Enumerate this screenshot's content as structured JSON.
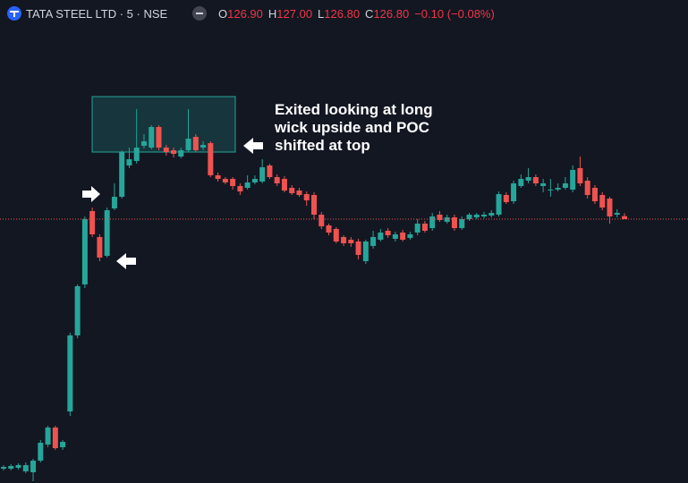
{
  "header": {
    "symbol": "TATA STEEL LTD · 5 · NSE",
    "ohlc": [
      {
        "label": "O",
        "value": "126.90"
      },
      {
        "label": "H",
        "value": "127.00"
      },
      {
        "label": "L",
        "value": "126.80"
      },
      {
        "label": "C",
        "value": "126.80"
      }
    ],
    "change": "−0.10 (−0.08%)"
  },
  "chart_data": {
    "type": "candlestick",
    "annotation": [
      "Exited looking at long",
      "wick upside and POC",
      "shifted at top"
    ],
    "up_color": "#26a69a",
    "down_color": "#ef5350",
    "last_price_line": true,
    "ylim": [
      117.95,
      134.15
    ],
    "open": [
      118.43,
      118.43,
      118.46,
      118.34,
      118.31,
      118.7,
      119.24,
      119.81,
      119.15,
      120.35,
      122.9,
      124.61,
      127.07,
      126.2,
      125.57,
      127.16,
      127.55,
      128.6,
      128.75,
      129.26,
      129.2,
      129.89,
      129.2,
      129.11,
      128.9,
      129.11,
      129.56,
      129.2,
      129.35,
      128.27,
      128.15,
      128.15,
      127.91,
      127.85,
      128.03,
      128.06,
      128.6,
      128.21,
      128.15,
      127.85,
      127.76,
      127.64,
      127.61,
      126.95,
      126.59,
      126.47,
      126.2,
      126.11,
      126.05,
      125.39,
      125.9,
      126.11,
      126.41,
      126.14,
      126.35,
      126.17,
      126.35,
      126.65,
      126.5,
      126.95,
      126.71,
      126.86,
      126.5,
      126.8,
      126.86,
      126.89,
      126.92,
      126.95,
      127.61,
      127.4,
      127.91,
      128.09,
      128.21,
      127.91,
      127.76,
      127.79,
      127.85,
      127.79,
      128.51,
      128.09,
      127.85,
      127.61,
      127.49,
      126.95,
      126.9
    ],
    "high": [
      118.55,
      118.58,
      118.61,
      118.64,
      118.76,
      119.39,
      119.87,
      119.87,
      119.39,
      122.99,
      124.61,
      126.89,
      127.19,
      126.29,
      127.19,
      128.0,
      129.11,
      129.2,
      130.49,
      129.65,
      129.95,
      129.95,
      129.29,
      129.2,
      129.2,
      130.49,
      129.65,
      129.41,
      129.41,
      128.36,
      128.21,
      128.21,
      128.0,
      128.27,
      128.27,
      128.81,
      128.66,
      128.3,
      128.24,
      127.94,
      127.85,
      127.73,
      127.7,
      127.04,
      126.65,
      126.53,
      126.26,
      126.2,
      126.14,
      126.11,
      126.41,
      126.47,
      126.5,
      126.38,
      126.44,
      126.38,
      126.8,
      126.74,
      127.01,
      127.07,
      126.95,
      126.95,
      126.89,
      127.01,
      127.01,
      127.04,
      127.1,
      127.73,
      127.7,
      128.09,
      128.3,
      128.51,
      128.3,
      128.15,
      128.15,
      128.0,
      128.21,
      128.6,
      128.9,
      128.21,
      127.94,
      127.7,
      127.55,
      127.13,
      127.0
    ],
    "low": [
      118.37,
      118.37,
      118.4,
      118.28,
      118.01,
      118.64,
      119.15,
      119.06,
      119.06,
      120.2,
      122.81,
      124.49,
      126.2,
      125.39,
      125.51,
      127.1,
      127.49,
      128.51,
      128.66,
      129.17,
      129.14,
      129.11,
      128.93,
      128.87,
      128.84,
      129.05,
      129.05,
      129.11,
      128.21,
      128.06,
      127.97,
      127.79,
      127.61,
      127.79,
      127.97,
      128.0,
      128.15,
      127.91,
      127.7,
      127.61,
      127.55,
      127.25,
      126.8,
      126.47,
      126.26,
      125.99,
      125.9,
      125.87,
      125.45,
      125.3,
      125.81,
      126.05,
      126.17,
      126.05,
      126.05,
      126.11,
      126.26,
      126.35,
      126.41,
      126.71,
      126.65,
      126.41,
      126.44,
      126.74,
      126.8,
      126.83,
      126.86,
      126.89,
      127.31,
      127.31,
      127.85,
      128.0,
      127.91,
      127.7,
      127.55,
      127.73,
      127.79,
      127.7,
      127.91,
      127.49,
      127.31,
      127.1,
      126.65,
      126.86,
      126.8
    ],
    "close": [
      118.49,
      118.52,
      118.55,
      118.55,
      118.7,
      119.3,
      119.81,
      119.12,
      119.33,
      122.9,
      124.55,
      126.8,
      126.29,
      125.51,
      127.1,
      127.55,
      129.05,
      128.81,
      129.2,
      129.41,
      129.89,
      129.2,
      129.05,
      128.99,
      129.11,
      129.5,
      129.11,
      129.29,
      128.27,
      128.15,
      128.03,
      127.91,
      127.73,
      128.03,
      128.15,
      128.54,
      128.21,
      128.0,
      127.76,
      127.67,
      127.61,
      127.43,
      126.95,
      126.56,
      126.35,
      126.05,
      125.99,
      125.99,
      125.6,
      126.05,
      126.2,
      126.35,
      126.26,
      126.29,
      126.11,
      126.29,
      126.65,
      126.41,
      126.89,
      126.77,
      126.86,
      126.5,
      126.8,
      126.95,
      126.95,
      126.95,
      127.01,
      127.64,
      127.37,
      128.0,
      128.15,
      128.21,
      128.0,
      128.0,
      127.79,
      127.85,
      128.0,
      128.45,
      128.0,
      127.61,
      127.4,
      127.19,
      126.89,
      127.01,
      126.8
    ]
  }
}
